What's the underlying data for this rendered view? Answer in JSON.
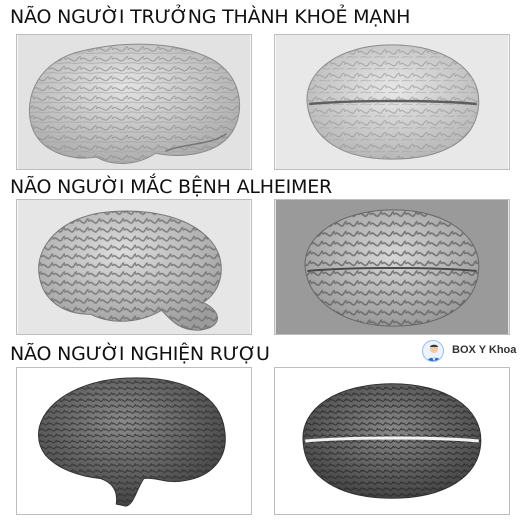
{
  "sections": [
    {
      "title": "NÃO NGƯỜI TRƯỞNG THÀNH KHOẺ MẠNH"
    },
    {
      "title": "NÃO NGƯỜI MẮC BỆNH ALHEIMER"
    },
    {
      "title": "NÃO NGƯỜI NGHIỆN RƯỢU"
    }
  ],
  "badge": {
    "text": "BOX Y Khoa",
    "icon": "doctor-avatar-icon"
  },
  "colors": {
    "healthy_tissue": "#d2d2d2",
    "alzheimer_tissue": "#c6c6c6",
    "alcoholic_tissue": "#6a6a6a",
    "photo_background": "#e2e2e2",
    "accent_blue": "#1e6fd0"
  }
}
